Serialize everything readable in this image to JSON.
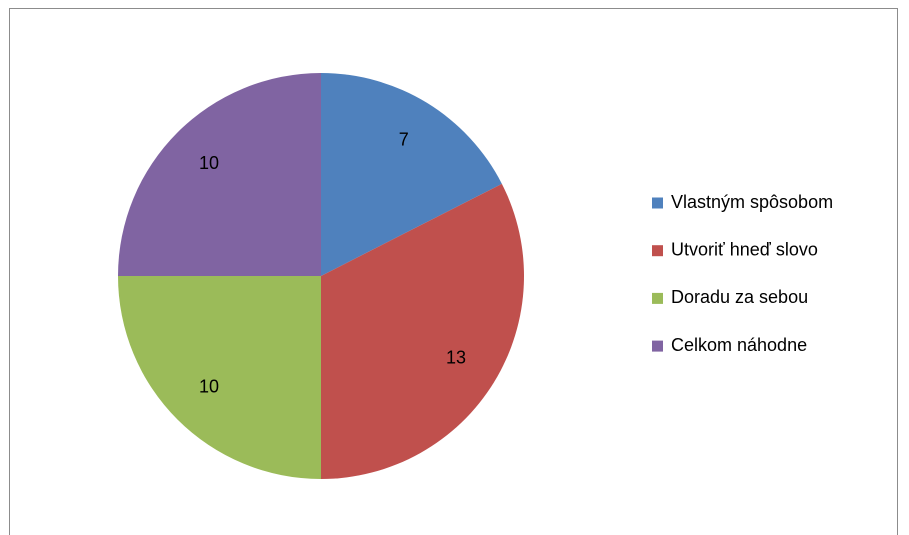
{
  "chart_data": {
    "type": "pie",
    "categories": [
      "Vlastným spôsobom",
      "Utvoriť hneď slovo",
      "Doradu za sebou",
      "Celkom náhodne"
    ],
    "values": [
      7,
      13,
      10,
      10
    ],
    "colors": [
      "#4f81bd",
      "#c0504d",
      "#9bbb59",
      "#8064a2"
    ],
    "legend": "right"
  }
}
